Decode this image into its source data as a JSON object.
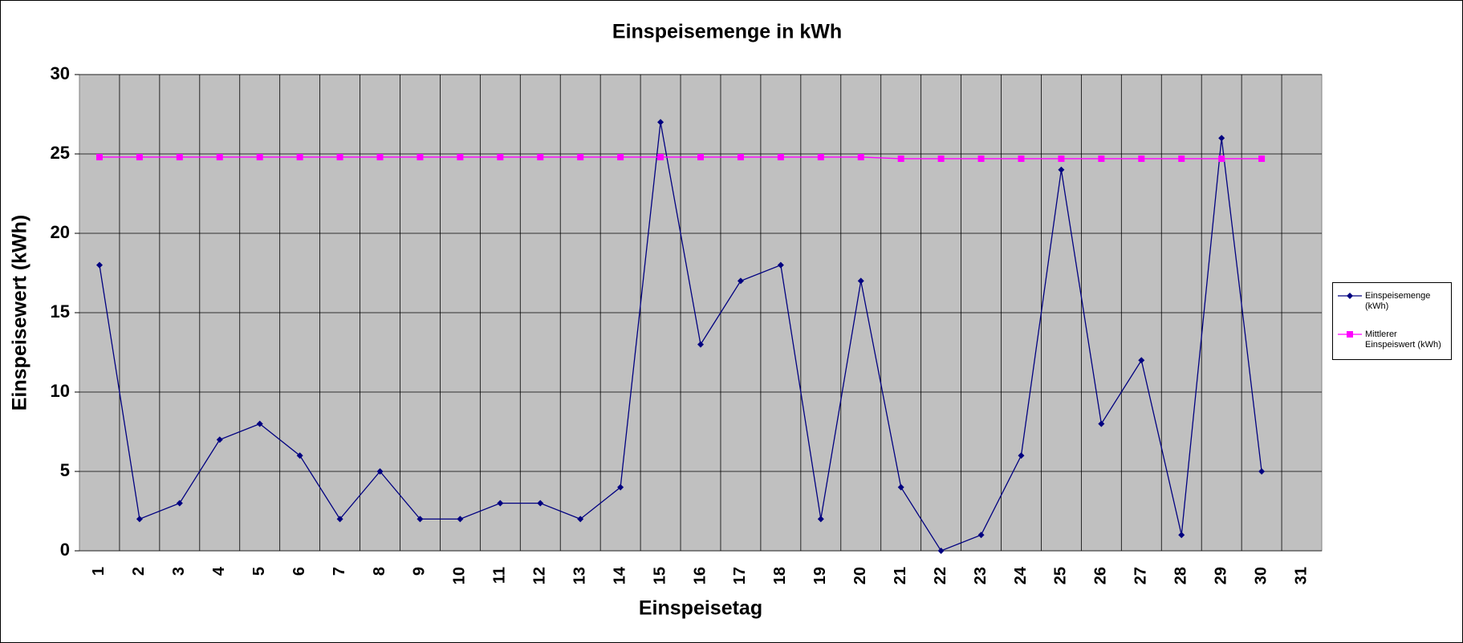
{
  "chart_data": {
    "type": "line",
    "title": "Einspeisemenge in kWh",
    "x_label": "Einspeisetag",
    "y_label": "Einspeisewert  (kWh)",
    "categories": [
      "1",
      "2",
      "3",
      "4",
      "5",
      "6",
      "7",
      "8",
      "9",
      "10",
      "11",
      "12",
      "13",
      "14",
      "15",
      "16",
      "17",
      "18",
      "19",
      "20",
      "21",
      "22",
      "23",
      "24",
      "25",
      "26",
      "27",
      "28",
      "29",
      "30",
      "31"
    ],
    "series": [
      {
        "name": "Einspeisemenge (kWh)",
        "color": "#000080",
        "marker": "diamond",
        "values": [
          18,
          2,
          3,
          7,
          8,
          6,
          2,
          5,
          2,
          2,
          3,
          3,
          2,
          4,
          27,
          13,
          17,
          18,
          2,
          17,
          4,
          0,
          1,
          6,
          24,
          8,
          12,
          1,
          26,
          5,
          null
        ]
      },
      {
        "name": "Mittlerer Einspeiswert (kWh)",
        "color": "#ff00ff",
        "marker": "square",
        "values": [
          24.8,
          24.8,
          24.8,
          24.8,
          24.8,
          24.8,
          24.8,
          24.8,
          24.8,
          24.8,
          24.8,
          24.8,
          24.8,
          24.8,
          24.8,
          24.8,
          24.8,
          24.8,
          24.8,
          24.8,
          24.7,
          24.7,
          24.7,
          24.7,
          24.7,
          24.7,
          24.7,
          24.7,
          24.7,
          24.7,
          null
        ]
      }
    ],
    "ylim": [
      0,
      30
    ],
    "yticks": [
      0,
      5,
      10,
      15,
      20,
      25,
      30
    ],
    "grid": true,
    "legend": "right"
  }
}
